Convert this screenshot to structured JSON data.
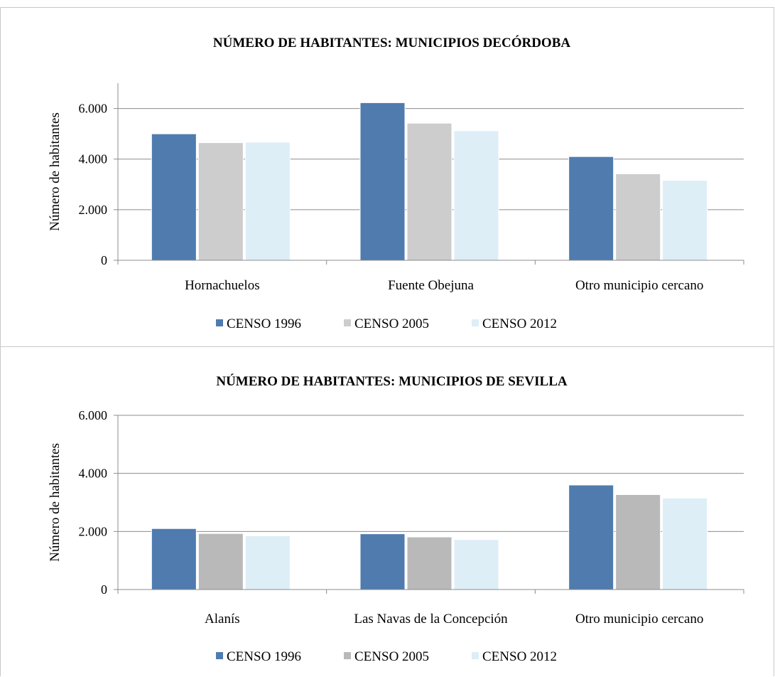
{
  "chart_data": [
    {
      "type": "bar",
      "title": "NÚMERO DE HABITANTES: MUNICIPIOS DECÓRDOBA",
      "xlabel": "",
      "ylabel": "Número de habitantes",
      "ylim": [
        0,
        7000
      ],
      "yticks": [
        0,
        2000,
        4000,
        6000
      ],
      "yticklabels": [
        "0",
        "2.000",
        "4.000",
        "6.000"
      ],
      "grid": true,
      "legend_position": "bottom",
      "categories": [
        "Hornachuelos",
        "Fuente Obejuna",
        "Otro municipio cercano"
      ],
      "series": [
        {
          "name": "CENSO 1996",
          "color": "#4f7baf",
          "values": [
            5000,
            6230,
            4100
          ]
        },
        {
          "name": "CENSO 2005",
          "color": "#cdcdcd",
          "values": [
            4650,
            5420,
            3420
          ]
        },
        {
          "name": "CENSO 2012",
          "color": "#ddeef7",
          "values": [
            4670,
            5120,
            3160
          ]
        }
      ]
    },
    {
      "type": "bar",
      "title": "NÚMERO DE HABITANTES: MUNICIPIOS DE SEVILLA",
      "xlabel": "",
      "ylabel": "Número de habitantes",
      "ylim": [
        0,
        6000
      ],
      "yticks": [
        0,
        2000,
        4000,
        6000
      ],
      "yticklabels": [
        "0",
        "2.000",
        "4.000",
        "6.000"
      ],
      "grid": true,
      "legend_position": "bottom",
      "categories": [
        "Alanís",
        "Las Navas de la Concepción",
        "Otro municipio cercano"
      ],
      "series": [
        {
          "name": "CENSO 1996",
          "color": "#4f7baf",
          "values": [
            2100,
            1920,
            3600
          ]
        },
        {
          "name": "CENSO 2005",
          "color": "#b9b9b9",
          "values": [
            1930,
            1810,
            3270
          ]
        },
        {
          "name": "CENSO 2012",
          "color": "#ddeef7",
          "values": [
            1850,
            1720,
            3150
          ]
        }
      ]
    }
  ]
}
